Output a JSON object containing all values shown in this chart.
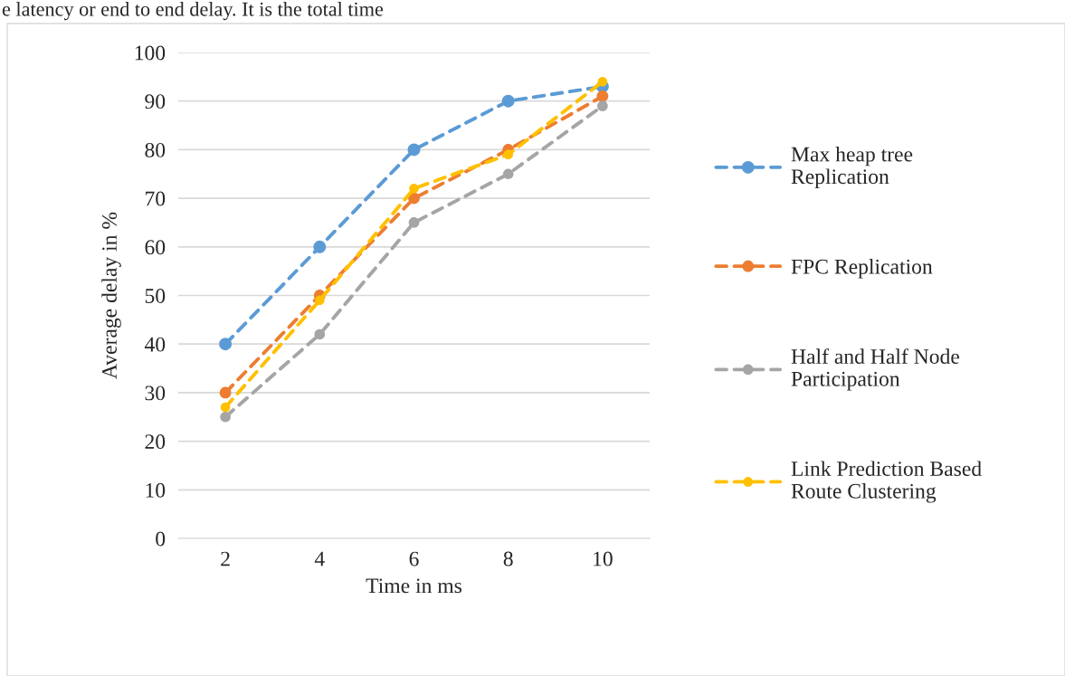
{
  "chart_data": {
    "type": "line",
    "xlabel": "Time in ms",
    "ylabel": "Average delay in %",
    "annotations": [
      "e latency or end to end delay. It is the total time"
    ],
    "categories": [
      "2",
      "4",
      "6",
      "8",
      "10"
    ],
    "series": [
      {
        "name": "Max heap tree\nReplication",
        "color": "#5b9bd5",
        "values": [
          40,
          60,
          80,
          90,
          93
        ]
      },
      {
        "name": "FPC Replication",
        "color": "#ed7d31",
        "values": [
          30,
          50,
          70,
          80,
          91
        ]
      },
      {
        "name": "Half and Half Node\nParticipation",
        "color": "#a5a5a5",
        "values": [
          25,
          42,
          65,
          75,
          89
        ]
      },
      {
        "name": "Link Prediction Based\nRoute Clustering",
        "color": "#ffc000",
        "values": [
          27,
          49,
          72,
          79,
          94
        ]
      }
    ],
    "ylim": [
      0,
      100
    ],
    "yticks": [
      0,
      10,
      20,
      30,
      40,
      50,
      60,
      70,
      80,
      90,
      100
    ],
    "grid": "y",
    "legend": "right",
    "marker": "circle",
    "line_style": "dashed"
  }
}
